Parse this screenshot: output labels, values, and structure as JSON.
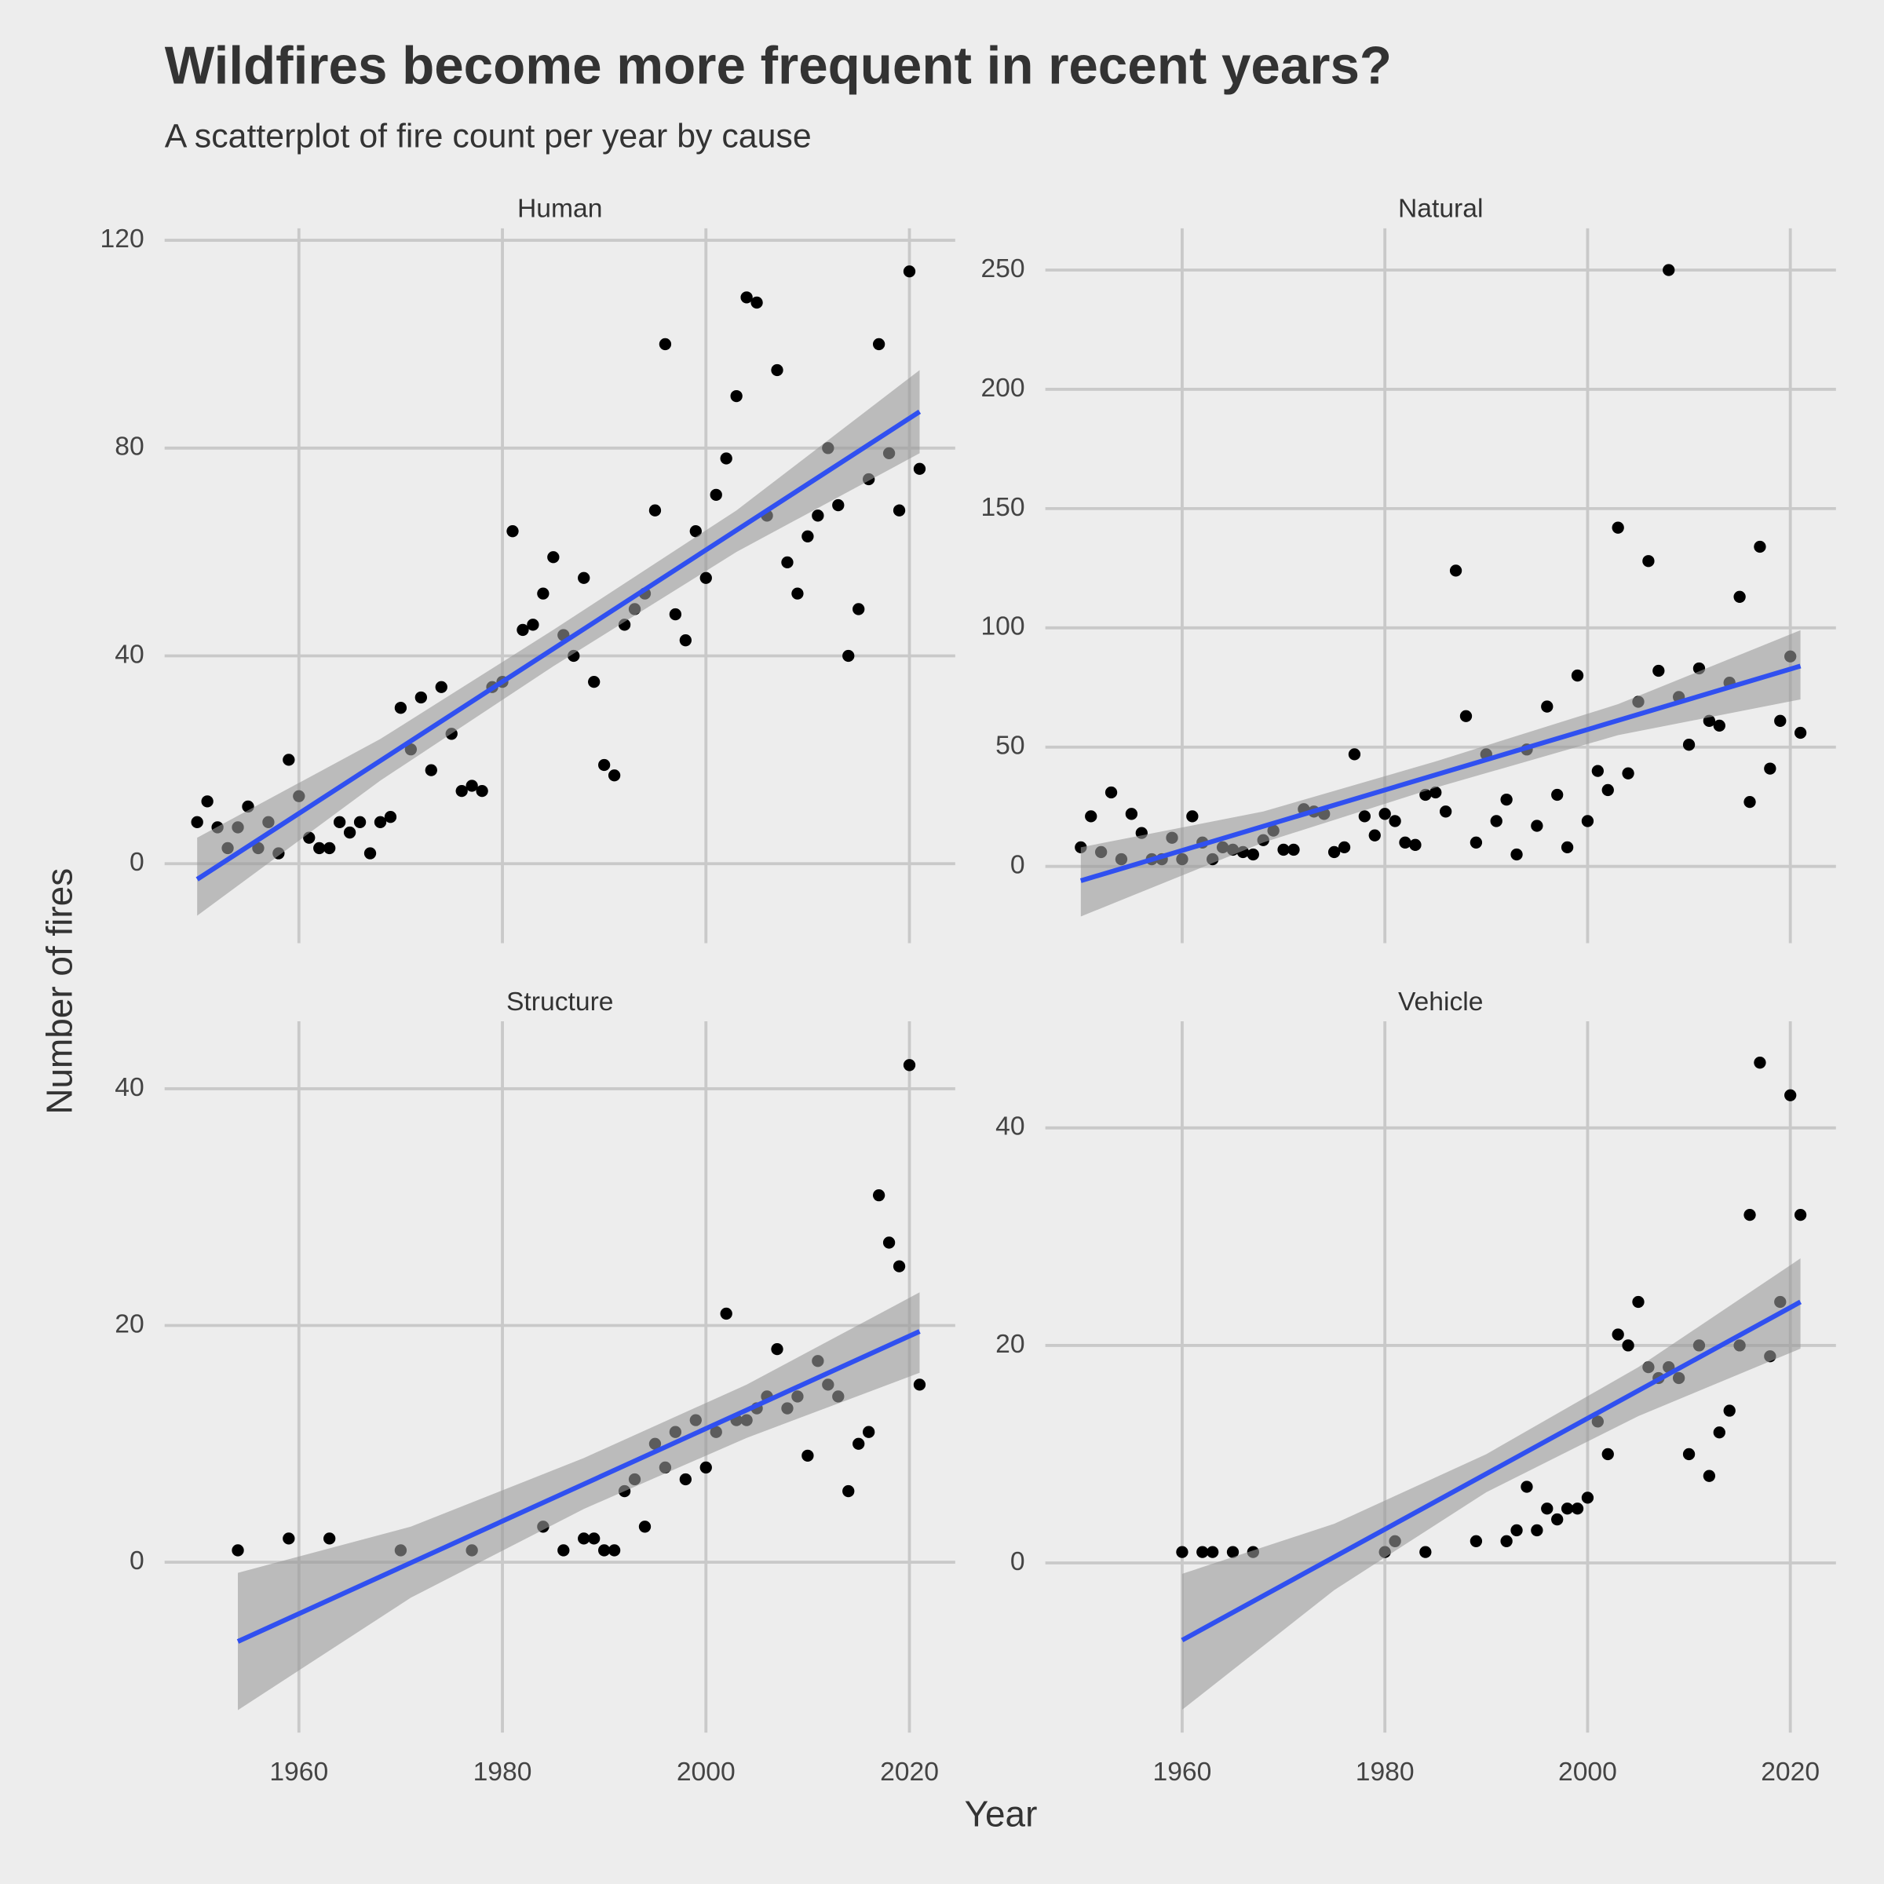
{
  "title": "Wildfires become more frequent in recent years?",
  "subtitle": "A scatterplot of fire count per year by cause",
  "xlabel": "Year",
  "ylabel": "Number of fires",
  "chart_data": [
    {
      "type": "scatter",
      "title": "Human",
      "color": "#000000",
      "x": [
        1950,
        1951,
        1952,
        1953,
        1954,
        1955,
        1956,
        1957,
        1958,
        1959,
        1960,
        1961,
        1962,
        1963,
        1964,
        1965,
        1966,
        1967,
        1968,
        1969,
        1970,
        1971,
        1972,
        1973,
        1974,
        1975,
        1976,
        1977,
        1978,
        1979,
        1980,
        1981,
        1982,
        1983,
        1984,
        1985,
        1986,
        1987,
        1988,
        1989,
        1990,
        1991,
        1992,
        1993,
        1994,
        1995,
        1996,
        1997,
        1998,
        1999,
        2000,
        2001,
        2002,
        2003,
        2004,
        2005,
        2006,
        2007,
        2008,
        2009,
        2010,
        2011,
        2012,
        2013,
        2014,
        2015,
        2016,
        2017,
        2018,
        2019,
        2020,
        2021
      ],
      "values": [
        8,
        12,
        7,
        3,
        7,
        11,
        3,
        8,
        2,
        20,
        13,
        5,
        3,
        3,
        8,
        6,
        8,
        2,
        8,
        9,
        30,
        22,
        32,
        18,
        34,
        25,
        14,
        15,
        14,
        34,
        35,
        64,
        45,
        46,
        52,
        59,
        44,
        40,
        55,
        35,
        19,
        17,
        46,
        49,
        52,
        68,
        100,
        48,
        43,
        64,
        55,
        71,
        78,
        90,
        109,
        108,
        67,
        95,
        58,
        52,
        63,
        67,
        80,
        69,
        40,
        49,
        74,
        100,
        79,
        68,
        114,
        76
      ],
      "trend": {
        "x": [
          1950,
          2021
        ],
        "values": [
          -3,
          87
        ],
        "color": "#3050f0"
      },
      "band": {
        "x": [
          1950,
          1968,
          1985,
          2003,
          2021
        ],
        "lower": [
          -10,
          16,
          38,
          60,
          79
        ],
        "upper": [
          5,
          24,
          45,
          68,
          95
        ],
        "color": "#9a9a9a"
      },
      "xlim": [
        1946.8,
        2024.5
      ],
      "ylim": [
        -15.3,
        122.3
      ],
      "xticks": [
        1960,
        1980,
        2000,
        2020
      ],
      "yticks": [
        0,
        40,
        80,
        120
      ],
      "grid": true
    },
    {
      "type": "scatter",
      "title": "Natural",
      "color": "#000000",
      "x": [
        1950,
        1951,
        1952,
        1953,
        1954,
        1955,
        1956,
        1957,
        1958,
        1959,
        1960,
        1961,
        1962,
        1963,
        1964,
        1965,
        1966,
        1967,
        1968,
        1969,
        1970,
        1971,
        1972,
        1973,
        1974,
        1975,
        1976,
        1977,
        1978,
        1979,
        1980,
        1981,
        1982,
        1983,
        1984,
        1985,
        1986,
        1987,
        1988,
        1989,
        1990,
        1991,
        1992,
        1993,
        1994,
        1995,
        1996,
        1997,
        1998,
        1999,
        2000,
        2001,
        2002,
        2003,
        2004,
        2005,
        2006,
        2007,
        2008,
        2009,
        2010,
        2011,
        2012,
        2013,
        2014,
        2015,
        2016,
        2017,
        2018,
        2019,
        2020,
        2021
      ],
      "values": [
        8,
        21,
        6,
        31,
        3,
        22,
        14,
        3,
        3,
        12,
        3,
        21,
        10,
        3,
        8,
        7,
        6,
        5,
        11,
        15,
        7,
        7,
        24,
        23,
        22,
        6,
        8,
        47,
        21,
        13,
        22,
        19,
        10,
        9,
        30,
        31,
        23,
        124,
        63,
        10,
        47,
        19,
        28,
        5,
        49,
        17,
        67,
        30,
        8,
        80,
        19,
        40,
        32,
        142,
        39,
        69,
        128,
        82,
        250,
        71,
        51,
        83,
        61,
        59,
        77,
        113,
        27,
        134,
        41,
        61,
        88,
        56
      ],
      "trend": {
        "x": [
          1950,
          2021
        ],
        "values": [
          -6,
          84
        ],
        "color": "#3050f0"
      },
      "band": {
        "x": [
          1950,
          1968,
          1985,
          2003,
          2021
        ],
        "lower": [
          -21,
          10,
          33,
          55,
          70
        ],
        "upper": [
          8,
          23,
          44,
          68,
          99
        ],
        "color": "#9a9a9a"
      },
      "xlim": [
        1946.5,
        2024.5
      ],
      "ylim": [
        -32.2,
        267.5
      ],
      "xticks": [
        1960,
        1980,
        2000,
        2020
      ],
      "yticks": [
        0,
        50,
        100,
        150,
        200,
        250
      ],
      "grid": true
    },
    {
      "type": "scatter",
      "title": "Structure",
      "color": "#000000",
      "x": [
        1954,
        1959,
        1963,
        1970,
        1977,
        1984,
        1986,
        1988,
        1989,
        1990,
        1991,
        1992,
        1993,
        1994,
        1995,
        1996,
        1997,
        1998,
        1999,
        2000,
        2001,
        2002,
        2003,
        2004,
        2005,
        2006,
        2007,
        2008,
        2009,
        2010,
        2011,
        2012,
        2013,
        2014,
        2015,
        2016,
        2017,
        2018,
        2019,
        2020,
        2021
      ],
      "values": [
        1,
        2,
        2,
        1,
        1,
        3,
        1,
        2,
        2,
        1,
        1,
        6,
        7,
        3,
        10,
        8,
        11,
        7,
        12,
        8,
        11,
        21,
        12,
        12,
        13,
        14,
        18,
        13,
        14,
        9,
        17,
        15,
        14,
        6,
        10,
        11,
        31,
        27,
        25,
        42,
        15
      ],
      "trend": {
        "x": [
          1954,
          2021
        ],
        "values": [
          -6.7,
          19.5
        ],
        "color": "#3050f0"
      },
      "band": {
        "x": [
          1954,
          1971,
          1988,
          2004,
          2021
        ],
        "lower": [
          -12.5,
          -3,
          4.5,
          10.5,
          16
        ],
        "upper": [
          -0.9,
          3,
          8.8,
          15,
          22.8
        ],
        "color": "#9a9a9a"
      },
      "xlim": [
        1946.8,
        2024.5
      ],
      "ylim": [
        -14.4,
        45.7
      ],
      "xticks": [
        1960,
        1980,
        2000,
        2020
      ],
      "yticks": [
        0,
        20,
        40
      ],
      "grid": true
    },
    {
      "type": "scatter",
      "title": "Vehicle",
      "color": "#000000",
      "x": [
        1960,
        1962,
        1963,
        1965,
        1967,
        1980,
        1981,
        1984,
        1989,
        1992,
        1993,
        1994,
        1995,
        1996,
        1997,
        1998,
        1999,
        2000,
        2001,
        2002,
        2003,
        2004,
        2005,
        2006,
        2007,
        2008,
        2009,
        2010,
        2011,
        2012,
        2013,
        2014,
        2015,
        2016,
        2017,
        2018,
        2019,
        2020,
        2021
      ],
      "values": [
        1,
        1,
        1,
        1,
        1,
        1,
        2,
        1,
        2,
        2,
        3,
        7,
        3,
        5,
        4,
        5,
        5,
        6,
        13,
        10,
        21,
        20,
        24,
        18,
        17,
        18,
        17,
        10,
        20,
        8,
        12,
        14,
        20,
        32,
        46,
        19,
        24,
        43,
        32
      ],
      "trend": {
        "x": [
          1960,
          2021
        ],
        "values": [
          -7.1,
          24
        ],
        "color": "#3050f0"
      },
      "band": {
        "x": [
          1960,
          1975,
          1990,
          2005,
          2021
        ],
        "lower": [
          -13.5,
          -2.5,
          6.5,
          13.5,
          19.7
        ],
        "upper": [
          -1,
          3.6,
          10,
          18,
          28
        ],
        "color": "#9a9a9a"
      },
      "xlim": [
        1946.5,
        2024.5
      ],
      "ylim": [
        -15.6,
        49.8
      ],
      "xticks": [
        1960,
        1980,
        2000,
        2020
      ],
      "yticks": [
        0,
        20,
        40
      ],
      "grid": true
    }
  ]
}
